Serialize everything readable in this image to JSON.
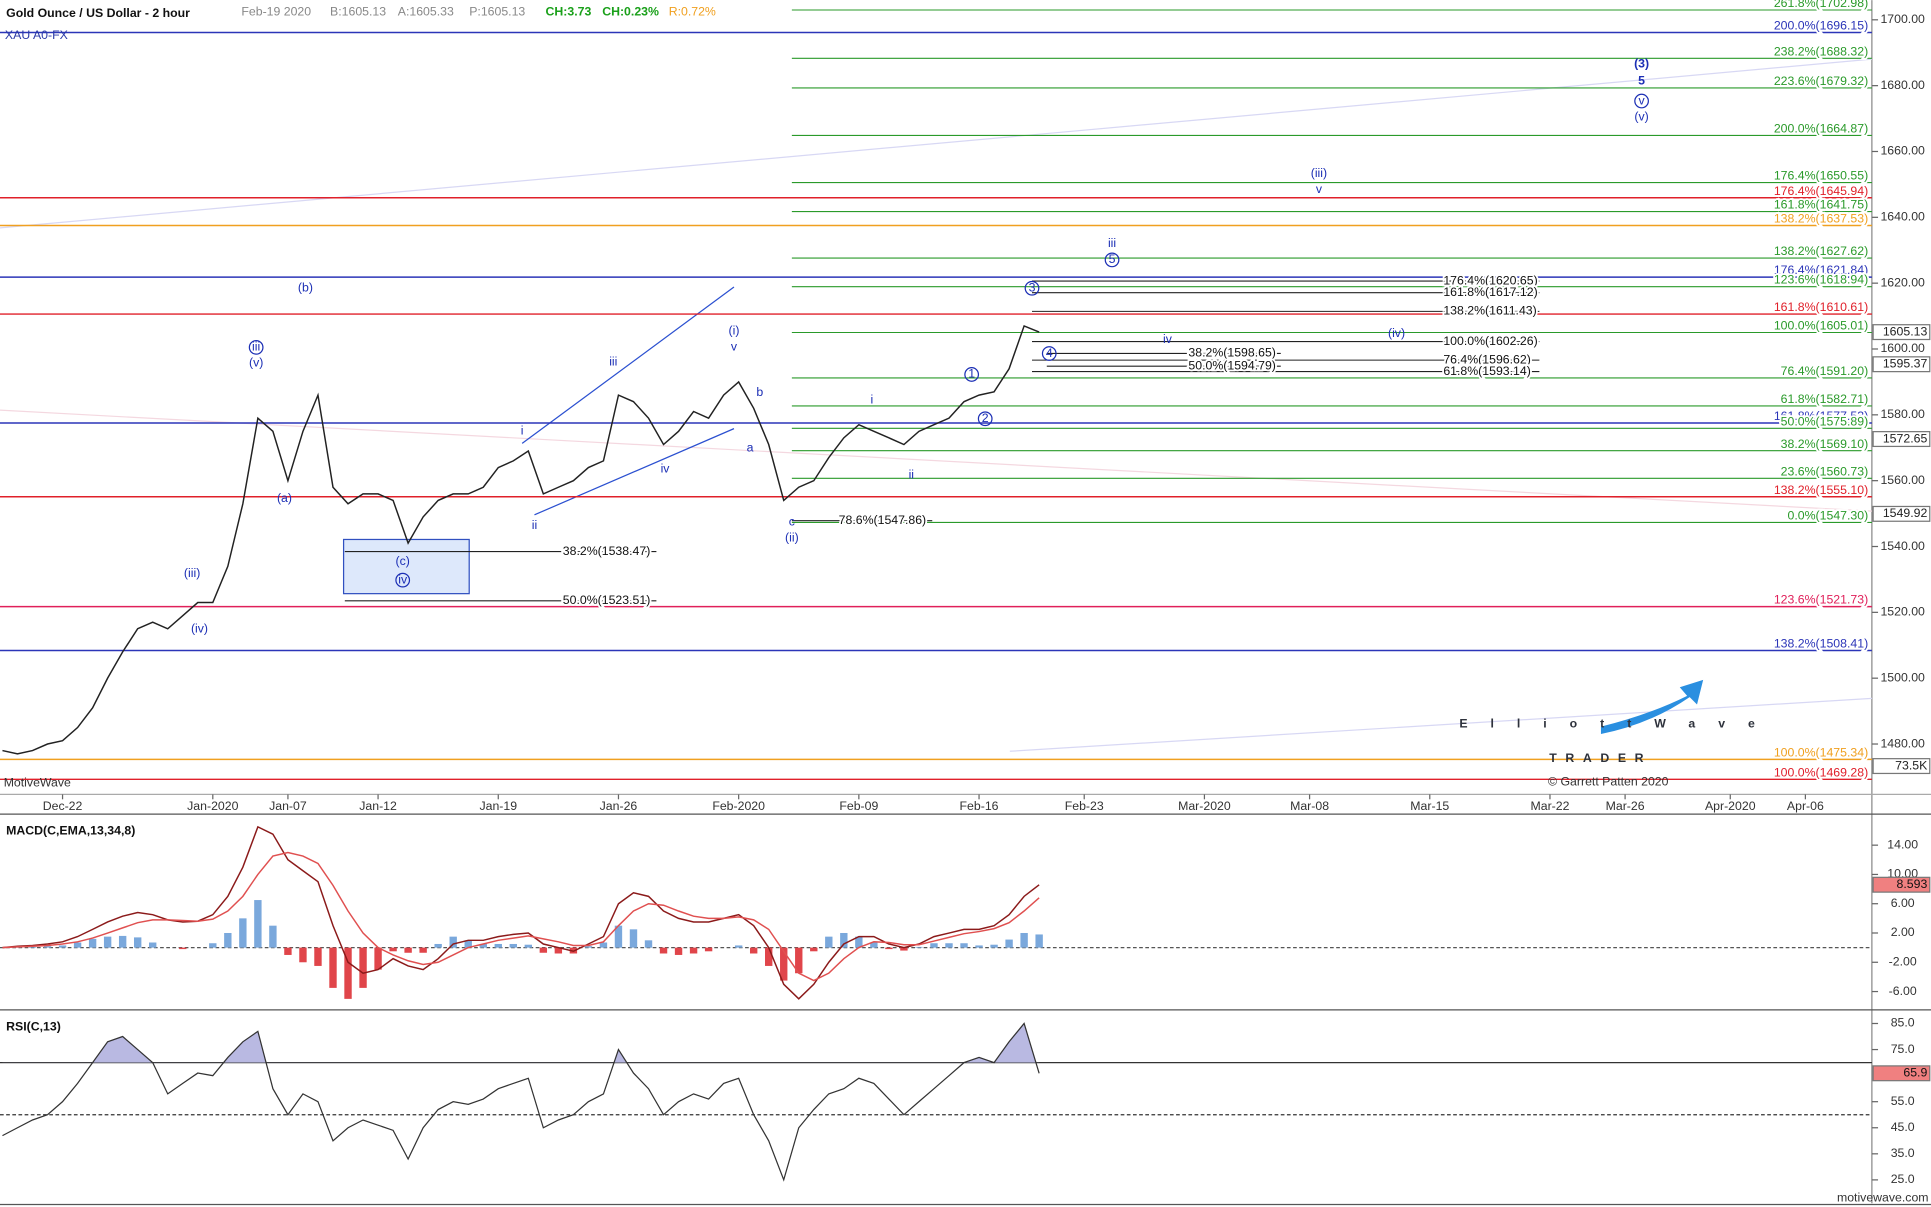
{
  "chart_data": [
    {
      "type": "line",
      "title": "Gold Ounce / US Dollar - 2 hour",
      "quote": [
        "Feb-19 2020",
        "B:1605.13",
        "A:1605.33",
        "P:1605.13"
      ],
      "change": [
        "CH:3.73",
        "CH:0.23%"
      ],
      "range": "R:0.72%",
      "symbol": "XAU A0-FX",
      "watermark": "MotiveWave",
      "footer": "motivewave.com",
      "logo": {
        "name": "ElliottWave",
        "tagline": "TRADER",
        "credit": "© Garrett Patten 2020"
      },
      "volume_label": "73.5K",
      "categories": [
        null,
        null,
        null,
        null,
        "Dec-22",
        null,
        null,
        null,
        null,
        null,
        null,
        null,
        null,
        null,
        "Jan-2020",
        null,
        null,
        null,
        null,
        "Jan-07",
        null,
        null,
        null,
        null,
        null,
        "Jan-12",
        null,
        null,
        null,
        null,
        null,
        null,
        null,
        "Jan-19",
        null,
        null,
        null,
        null,
        null,
        null,
        null,
        "Jan-26",
        null,
        null,
        null,
        null,
        null,
        null,
        null,
        "Feb-2020",
        null,
        null,
        null,
        null,
        null,
        null,
        null,
        "Feb-09",
        null,
        null,
        null,
        null,
        null,
        null,
        null,
        "Feb-16",
        null,
        null,
        null,
        null,
        null,
        null,
        "Feb-23",
        null,
        null,
        null,
        null,
        null,
        null,
        null,
        "Mar-2020",
        null,
        null,
        null,
        null,
        null,
        null,
        "Mar-08",
        null,
        null,
        null,
        null,
        null,
        null,
        null,
        "Mar-15",
        null,
        null,
        null,
        null,
        null,
        null,
        null,
        "Mar-22",
        null,
        null,
        null,
        null,
        "Mar-26",
        null,
        null,
        null,
        null,
        null,
        null,
        "Apr-2020",
        null,
        null,
        null,
        null,
        "Apr-06",
        null,
        null,
        null,
        null
      ],
      "values": [
        1478,
        1477,
        1478,
        1480,
        1481,
        1485,
        1491,
        1500,
        1508,
        1515,
        1517,
        1515,
        1519,
        1523,
        1523,
        1534,
        1553,
        1579,
        1575,
        1560,
        1575,
        1586,
        1558,
        1553,
        1556,
        1556,
        1554,
        1541,
        1549,
        1554,
        1556,
        1556,
        1558,
        1564,
        1566,
        1569,
        1556,
        1558,
        1560,
        1564,
        1566,
        1586,
        1584,
        1579,
        1571,
        1575,
        1581,
        1579,
        1586,
        1590,
        1582,
        1571,
        1554,
        1558,
        1560,
        1567,
        1573,
        1577,
        1575,
        1573,
        1571,
        1575,
        1577,
        1579,
        1584,
        1586,
        1587,
        1594,
        1607,
        1605.13,
        null,
        null,
        null,
        null,
        null,
        null,
        null,
        null,
        null,
        null,
        null,
        null,
        null,
        null,
        null,
        null,
        null,
        null,
        null,
        null,
        null,
        null,
        null,
        null,
        null,
        null,
        null,
        null,
        null,
        null,
        null,
        null,
        null,
        null,
        null,
        null,
        null,
        null,
        null,
        null,
        null,
        null,
        null,
        null,
        null,
        null,
        null,
        null,
        null,
        null,
        null,
        null,
        null,
        null,
        null
      ],
      "color": "#222222",
      "ylim": [
        1464.7,
        1706
      ],
      "yticks": [
        {
          "value": 1480,
          "label": "1480.00"
        },
        {
          "value": 1500,
          "label": "1500.00"
        },
        {
          "value": 1520,
          "label": "1520.00"
        },
        {
          "value": 1540,
          "label": "1540.00"
        },
        {
          "value": 1560,
          "label": "1560.00"
        },
        {
          "value": 1580,
          "label": "1580.00"
        },
        {
          "value": 1600,
          "label": "1600.00"
        },
        {
          "value": 1620,
          "label": "1620.00"
        },
        {
          "value": 1640,
          "label": "1640.00"
        },
        {
          "value": 1660,
          "label": "1660.00"
        },
        {
          "value": 1680,
          "label": "1680.00"
        },
        {
          "value": 1700,
          "label": "1700.00"
        }
      ],
      "grid": false,
      "price_labels": [
        1605.13,
        1595.37,
        1572.65,
        1549.92
      ],
      "fib_levels": [
        {
          "label": "261.8%(1702.98)",
          "value": 1702.98,
          "color": "#2a9a2a",
          "full": false
        },
        {
          "label": "200.0%(1696.15)",
          "value": 1696.15,
          "color": "#2b35b8",
          "full": true
        },
        {
          "label": "238.2%(1688.32)",
          "value": 1688.32,
          "color": "#2a9a2a",
          "full": false
        },
        {
          "label": "223.6%(1679.32)",
          "value": 1679.32,
          "color": "#2a9a2a",
          "full": false
        },
        {
          "label": "200.0%(1664.87)",
          "value": 1664.87,
          "color": "#2a9a2a",
          "full": false
        },
        {
          "label": "176.4%(1650.55)",
          "value": 1650.55,
          "color": "#2a9a2a",
          "full": false
        },
        {
          "label": "176.4%(1645.94)",
          "value": 1645.94,
          "color": "#e0202a",
          "full": true
        },
        {
          "label": "161.8%(1641.75)",
          "value": 1641.75,
          "color": "#2a9a2a",
          "full": false
        },
        {
          "label": "138.2%(1637.53)",
          "value": 1637.53,
          "color": "#f0a020",
          "full": true
        },
        {
          "label": "138.2%(1627.62)",
          "value": 1627.62,
          "color": "#2a9a2a",
          "full": false
        },
        {
          "label": "176.4%(1621.84)",
          "value": 1621.84,
          "color": "#2b35b8",
          "full": true
        },
        {
          "label": "123.6%(1618.94)",
          "value": 1618.94,
          "color": "#2a9a2a",
          "full": false
        },
        {
          "label": "161.8%(1610.61)",
          "value": 1610.61,
          "color": "#e0202a",
          "full": true
        },
        {
          "label": "100.0%(1605.01)",
          "value": 1605.01,
          "color": "#2a9a2a",
          "full": false
        },
        {
          "label": "76.4%(1591.20)",
          "value": 1591.2,
          "color": "#2a9a2a",
          "full": false
        },
        {
          "label": "61.8%(1582.71)",
          "value": 1582.71,
          "color": "#2a9a2a",
          "full": false
        },
        {
          "label": "161.8%(1577.53)",
          "value": 1577.53,
          "color": "#2b35b8",
          "full": true
        },
        {
          "label": "50.0%(1575.89)",
          "value": 1575.89,
          "color": "#2a9a2a",
          "full": false
        },
        {
          "label": "38.2%(1569.10)",
          "value": 1569.1,
          "color": "#2a9a2a",
          "full": false
        },
        {
          "label": "23.6%(1560.73)",
          "value": 1560.73,
          "color": "#2a9a2a",
          "full": false
        },
        {
          "label": "138.2%(1555.10)",
          "value": 1555.1,
          "color": "#e0202a",
          "full": true
        },
        {
          "label": "0.0%(1547.30)",
          "value": 1547.3,
          "color": "#2a9a2a",
          "full": false
        },
        {
          "label": "123.6%(1521.73)",
          "value": 1521.73,
          "color": "#e0205a",
          "full": true
        },
        {
          "label": "138.2%(1508.41)",
          "value": 1508.41,
          "color": "#2b35b8",
          "full": true
        },
        {
          "label": "100.0%(1475.34)",
          "value": 1475.34,
          "color": "#f0a020",
          "full": true
        },
        {
          "label": "100.0%(1469.28)",
          "value": 1469.28,
          "color": "#e0202a",
          "full": true
        }
      ],
      "fib_projections": [
        {
          "label": "176.4%(1620.65)",
          "value": 1620.65
        },
        {
          "label": "161.8%(1617.12)",
          "value": 1617.12
        },
        {
          "label": "138.2%(1611.43)",
          "value": 1611.43
        },
        {
          "label": "100.0%(1602.26)",
          "value": 1602.26
        },
        {
          "label": "76.4%(1596.62)",
          "value": 1596.62
        },
        {
          "label": "61.8%(1593.14)",
          "value": 1593.14
        },
        {
          "label": "38.2%(1598.65)",
          "value": 1598.65
        },
        {
          "label": "50.0%(1594.79)",
          "value": 1594.79
        },
        {
          "label": "78.6%(1547.86)",
          "value": 1547.86
        },
        {
          "label": "38.2%(1538.47)",
          "value": 1538.47
        },
        {
          "label": "50.0%(1523.51)",
          "value": 1523.51
        }
      ],
      "wave_labels": [
        "(b)",
        "iii",
        "(v)",
        "(a)",
        "(iii)",
        "(iv)",
        "(c)",
        "iv",
        "i",
        "ii",
        "iii",
        "iv",
        "(i)",
        "v",
        "b",
        "a",
        "c",
        "(ii)",
        "i",
        "ii",
        "1",
        "2",
        "3",
        "4",
        "iii",
        "5",
        "iv",
        "(iv)",
        "(iii)",
        "v",
        "(3)",
        "5",
        "v",
        "(v)"
      ]
    },
    {
      "type": "macd",
      "title": "MACD(C,EMA,13,34,8)",
      "macd": [
        0,
        0.2,
        0.3,
        0.5,
        0.8,
        1.5,
        2.5,
        3.5,
        4.3,
        4.8,
        4.5,
        3.8,
        3.5,
        3.6,
        4.5,
        7,
        11,
        16.5,
        15.5,
        12,
        10.5,
        9,
        3,
        -2,
        -3.5,
        -3,
        -1.5,
        -2.5,
        -3,
        -1.5,
        0.5,
        1,
        1,
        1.5,
        1.8,
        2,
        0.5,
        0,
        -0.5,
        0.5,
        1.5,
        6,
        7.5,
        7,
        5,
        4,
        3.5,
        3.5,
        4,
        4.5,
        3,
        0,
        -5,
        -7,
        -5,
        -2,
        0.5,
        1.5,
        1.5,
        0.5,
        0,
        0.5,
        1.5,
        2,
        2.5,
        2.5,
        3,
        4.5,
        7,
        8.593
      ],
      "signal": [
        0,
        0.1,
        0.2,
        0.3,
        0.5,
        0.8,
        1.3,
        2,
        2.7,
        3.4,
        3.8,
        3.8,
        3.7,
        3.6,
        3.9,
        5,
        7,
        10,
        12.5,
        13,
        12.5,
        11.5,
        8.5,
        5,
        2,
        0,
        -1,
        -1.8,
        -2.3,
        -2,
        -1,
        0,
        0.5,
        1,
        1.3,
        1.6,
        1.2,
        0.8,
        0.3,
        0.3,
        0.8,
        3,
        5,
        6,
        5.8,
        5,
        4.3,
        4,
        4,
        4.2,
        3.8,
        2.5,
        -0.5,
        -3.5,
        -4.5,
        -3.5,
        -1.5,
        0,
        0.8,
        0.7,
        0.4,
        0.4,
        0.9,
        1.4,
        1.9,
        2.2,
        2.6,
        3.4,
        5,
        6.8
      ],
      "histogram": [
        0,
        0.1,
        0.1,
        0.2,
        0.3,
        0.7,
        1.2,
        1.5,
        1.6,
        1.4,
        0.7,
        0,
        -0.2,
        0,
        0.6,
        2,
        4,
        6.5,
        3,
        -1,
        -2,
        -2.5,
        -5.5,
        -7,
        -5.5,
        -3,
        -0.5,
        -0.7,
        -0.7,
        0.5,
        1.5,
        1,
        0.5,
        0.5,
        0.5,
        0.4,
        -0.7,
        -0.8,
        -0.8,
        0.2,
        0.7,
        3,
        2.5,
        1,
        -0.8,
        -1,
        -0.8,
        -0.5,
        0,
        0.3,
        -0.8,
        -2.5,
        -4.5,
        -3.5,
        -0.5,
        1.5,
        2,
        1.5,
        0.7,
        -0.2,
        -0.4,
        0.1,
        0.6,
        0.6,
        0.6,
        0.3,
        0.4,
        1.1,
        2,
        1.8
      ],
      "macd_color": "#8b1a1a",
      "signal_color": "#e05050",
      "positive_color": "#7aa8dc",
      "negative_color": "#e0454a",
      "current_label": "8.593",
      "ylim": [
        -8.17,
        17.74
      ],
      "yticks": [
        {
          "value": -6,
          "label": "-6.00"
        },
        {
          "value": -2,
          "label": "-2.00"
        },
        {
          "value": 2,
          "label": "2.00"
        },
        {
          "value": 6,
          "label": "6.00"
        },
        {
          "value": 10,
          "label": "10.00"
        },
        {
          "value": 14,
          "label": "14.00"
        }
      ],
      "zero_line": 0
    },
    {
      "type": "rsi",
      "title": "RSI(C,13)",
      "values": [
        42,
        45,
        48,
        50,
        55,
        62,
        70,
        78,
        80,
        75,
        70,
        58,
        62,
        66,
        65,
        72,
        78,
        82,
        60,
        50,
        58,
        55,
        40,
        45,
        48,
        46,
        44,
        33,
        45,
        52,
        55,
        54,
        56,
        60,
        62,
        64,
        45,
        48,
        50,
        55,
        58,
        75,
        66,
        60,
        50,
        55,
        58,
        56,
        62,
        64,
        50,
        40,
        25,
        45,
        52,
        58,
        60,
        64,
        62,
        56,
        50,
        55,
        60,
        65,
        70,
        72,
        70,
        78,
        85,
        65.9
      ],
      "color": "#333333",
      "fill_color": "#b9b9e2",
      "current_label": "65.9",
      "ylim": [
        16.04,
        88.8
      ],
      "yticks": [
        {
          "value": 25,
          "label": "25.0"
        },
        {
          "value": 35,
          "label": "35.0"
        },
        {
          "value": 45,
          "label": "45.0"
        },
        {
          "value": 55,
          "label": "55.0"
        },
        {
          "value": 75,
          "label": "75.0"
        },
        {
          "value": 85,
          "label": "85.0"
        }
      ],
      "bands": [
        70,
        50
      ]
    }
  ]
}
